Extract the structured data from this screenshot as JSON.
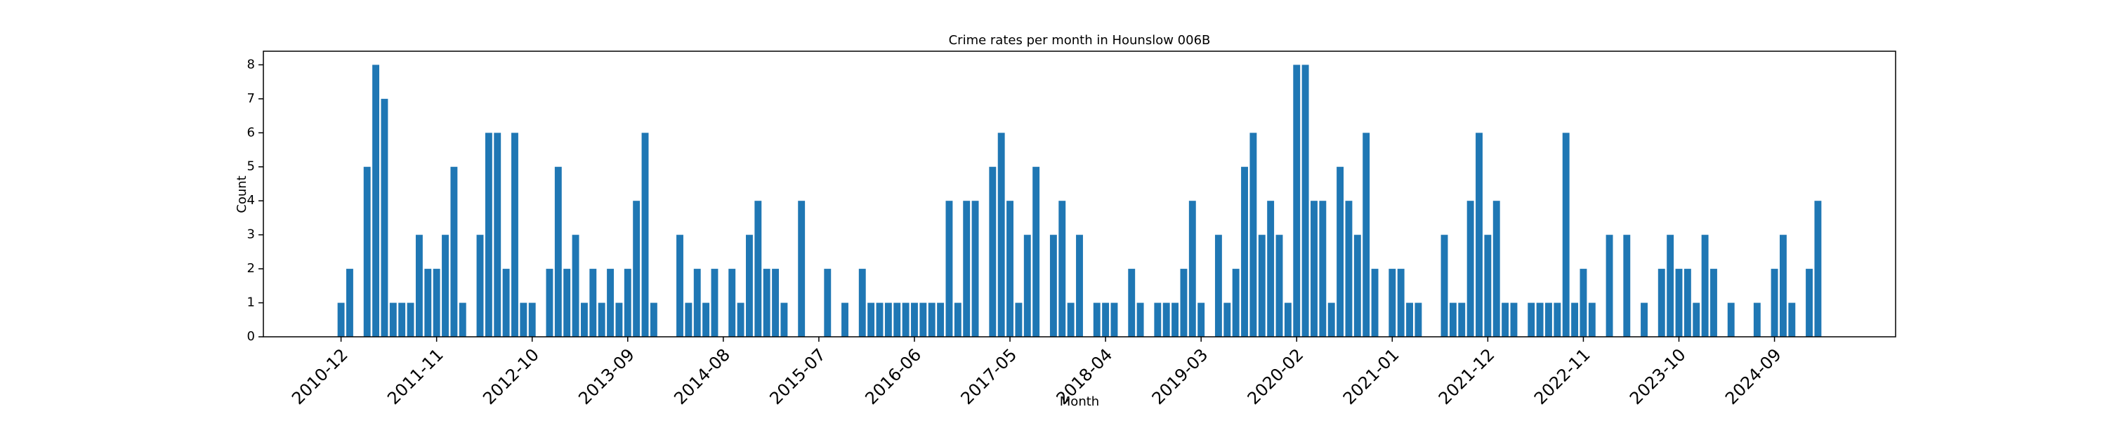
{
  "chart_data": {
    "type": "bar",
    "title": "Crime rates per month in Hounslow 006B",
    "xlabel": "Month",
    "ylabel": "Count",
    "color": "#1f77b4",
    "categories": [
      "2010-12",
      null,
      null,
      null,
      null,
      null,
      null,
      null,
      null,
      null,
      null,
      "2011-11",
      null,
      null,
      null,
      null,
      null,
      null,
      null,
      null,
      null,
      null,
      "2012-10",
      null,
      null,
      null,
      null,
      null,
      null,
      null,
      null,
      null,
      null,
      "2013-09",
      null,
      null,
      null,
      null,
      null,
      null,
      null,
      null,
      null,
      null,
      "2014-08",
      null,
      null,
      null,
      null,
      null,
      null,
      null,
      null,
      null,
      null,
      "2015-07",
      null,
      null,
      null,
      null,
      null,
      null,
      null,
      null,
      null,
      null,
      "2016-06",
      null,
      null,
      null,
      null,
      null,
      null,
      null,
      null,
      null,
      null,
      "2017-05",
      null,
      null,
      null,
      null,
      null,
      null,
      null,
      null,
      null,
      null,
      "2018-04",
      null,
      null,
      null,
      null,
      null,
      null,
      null,
      null,
      null,
      null,
      "2019-03",
      null,
      null,
      null,
      null,
      null,
      null,
      null,
      null,
      null,
      null,
      "2020-02",
      null,
      null,
      null,
      null,
      null,
      null,
      null,
      null,
      null,
      null,
      "2021-01",
      null,
      null,
      null,
      null,
      null,
      null,
      null,
      null,
      null,
      null,
      "2021-12",
      null,
      null,
      null,
      null,
      null,
      null,
      null,
      null,
      null,
      null,
      "2022-11",
      null,
      null,
      null,
      null,
      null,
      null,
      null,
      null,
      null,
      null,
      "2023-10",
      null,
      null,
      null,
      null,
      null,
      null,
      null,
      null,
      null,
      null,
      "2024-09",
      null,
      null,
      null,
      null,
      null
    ],
    "values": [
      1,
      2,
      0,
      5,
      8,
      7,
      1,
      1,
      1,
      3,
      2,
      2,
      3,
      5,
      1,
      0,
      3,
      6,
      6,
      2,
      6,
      1,
      1,
      0,
      2,
      5,
      2,
      3,
      1,
      2,
      1,
      2,
      1,
      2,
      4,
      6,
      1,
      0,
      0,
      3,
      1,
      2,
      1,
      2,
      0,
      2,
      1,
      3,
      4,
      2,
      2,
      1,
      0,
      4,
      0,
      0,
      2,
      0,
      1,
      0,
      2,
      1,
      1,
      1,
      1,
      1,
      1,
      1,
      1,
      1,
      4,
      1,
      4,
      4,
      0,
      5,
      6,
      4,
      1,
      3,
      5,
      0,
      3,
      4,
      1,
      3,
      0,
      1,
      1,
      1,
      0,
      2,
      1,
      0,
      1,
      1,
      1,
      2,
      4,
      1,
      0,
      3,
      1,
      2,
      5,
      6,
      3,
      4,
      3,
      1,
      8,
      8,
      4,
      4,
      1,
      5,
      4,
      3,
      6,
      2,
      0,
      2,
      2,
      1,
      1,
      0,
      0,
      3,
      1,
      1,
      4,
      6,
      3,
      4,
      1,
      1,
      0,
      1,
      1,
      1,
      1,
      6,
      1,
      2,
      1,
      0,
      3,
      0,
      3,
      0,
      1,
      0,
      2,
      3,
      2,
      2,
      1,
      3,
      2,
      0,
      1,
      0,
      0,
      1,
      0,
      2,
      3,
      1,
      0,
      2,
      4
    ],
    "ylim": [
      0,
      8.4
    ],
    "yticks": [
      0,
      1,
      2,
      3,
      4,
      5,
      6,
      7,
      8
    ],
    "grid": false
  }
}
